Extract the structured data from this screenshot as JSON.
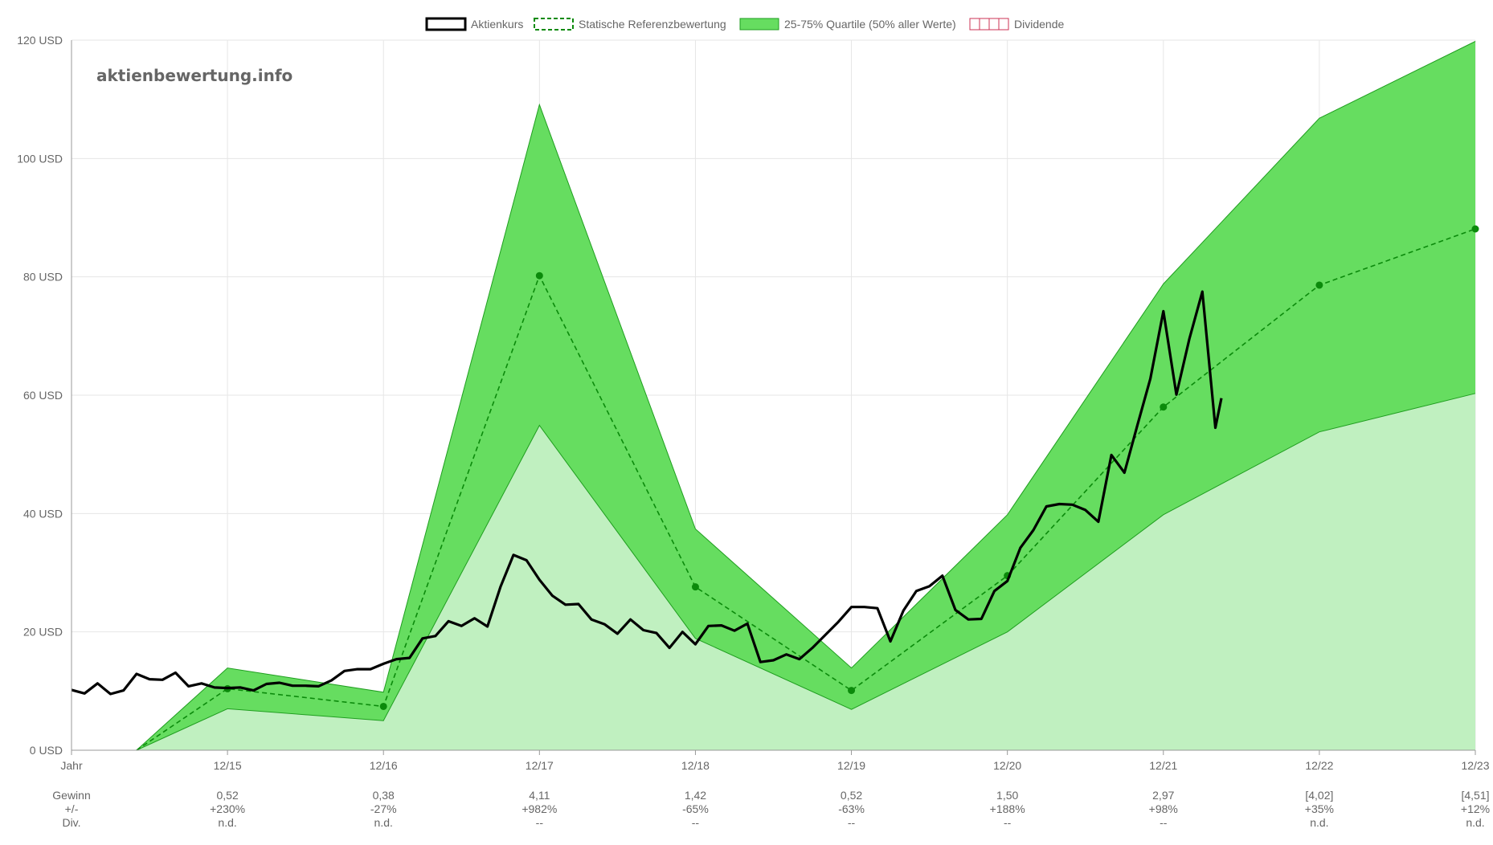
{
  "watermark": "aktienbewertung.info",
  "legend": [
    {
      "label": "Aktienkurs",
      "kind": "price"
    },
    {
      "label": "Statische Referenzbewertung",
      "kind": "reference"
    },
    {
      "label": "25-75% Quartile (50% aller Werte)",
      "kind": "quartile"
    },
    {
      "label": "Dividende",
      "kind": "dividend"
    }
  ],
  "colors": {
    "price": "#000000",
    "reference": "#0b8a0b",
    "band": "#66dd60",
    "band_edge": "#1f9e1f",
    "lower_fill": "#c0f0c0",
    "dividend": "#cc3355",
    "grid": "#e6e6e6",
    "axis": "#999999"
  },
  "chart_data": {
    "type": "line",
    "yunit": "USD",
    "ylim": [
      0,
      120
    ],
    "xlim": [
      "2014-12",
      "2023-12"
    ],
    "yticks": [
      {
        "value": 0,
        "label": "0 USD"
      },
      {
        "value": 20,
        "label": "20 USD"
      },
      {
        "value": 40,
        "label": "40 USD"
      },
      {
        "value": 60,
        "label": "60 USD"
      },
      {
        "value": 80,
        "label": "80 USD"
      },
      {
        "value": 100,
        "label": "100 USD"
      },
      {
        "value": 120,
        "label": "120 USD"
      }
    ],
    "xticks": [
      {
        "value": "2014-12",
        "label": "Jahr"
      },
      {
        "value": "2015-12",
        "label": "12/15"
      },
      {
        "value": "2016-12",
        "label": "12/16"
      },
      {
        "value": "2017-12",
        "label": "12/17"
      },
      {
        "value": "2018-12",
        "label": "12/18"
      },
      {
        "value": "2019-12",
        "label": "12/19"
      },
      {
        "value": "2020-12",
        "label": "12/20"
      },
      {
        "value": "2021-12",
        "label": "12/21"
      },
      {
        "value": "2022-12",
        "label": "12/22"
      },
      {
        "value": "2023-12",
        "label": "12/23"
      }
    ],
    "grid": true,
    "legend_position": "top-center",
    "series": [
      {
        "name": "Aktienkurs",
        "style": "solid-black",
        "points": [
          {
            "x": "2014-12",
            "y": 10.2
          },
          {
            "x": "2015-01",
            "y": 9.6
          },
          {
            "x": "2015-02",
            "y": 11.3
          },
          {
            "x": "2015-03",
            "y": 9.5
          },
          {
            "x": "2015-04",
            "y": 10.1
          },
          {
            "x": "2015-05",
            "y": 12.9
          },
          {
            "x": "2015-06",
            "y": 12.0
          },
          {
            "x": "2015-07",
            "y": 11.9
          },
          {
            "x": "2015-08",
            "y": 13.1
          },
          {
            "x": "2015-09",
            "y": 10.8
          },
          {
            "x": "2015-10",
            "y": 11.3
          },
          {
            "x": "2015-11",
            "y": 10.6
          },
          {
            "x": "2015-12",
            "y": 10.5
          },
          {
            "x": "2016-01",
            "y": 10.6
          },
          {
            "x": "2016-02",
            "y": 10.1
          },
          {
            "x": "2016-03",
            "y": 11.2
          },
          {
            "x": "2016-04",
            "y": 11.4
          },
          {
            "x": "2016-05",
            "y": 10.9
          },
          {
            "x": "2016-06",
            "y": 10.9
          },
          {
            "x": "2016-07",
            "y": 10.8
          },
          {
            "x": "2016-08",
            "y": 11.8
          },
          {
            "x": "2016-09",
            "y": 13.4
          },
          {
            "x": "2016-10",
            "y": 13.7
          },
          {
            "x": "2016-11",
            "y": 13.7
          },
          {
            "x": "2016-12",
            "y": 14.6
          },
          {
            "x": "2017-01",
            "y": 15.4
          },
          {
            "x": "2017-02",
            "y": 15.6
          },
          {
            "x": "2017-03",
            "y": 18.9
          },
          {
            "x": "2017-04",
            "y": 19.3
          },
          {
            "x": "2017-05",
            "y": 21.8
          },
          {
            "x": "2017-06",
            "y": 21.0
          },
          {
            "x": "2017-07",
            "y": 22.3
          },
          {
            "x": "2017-08",
            "y": 20.9
          },
          {
            "x": "2017-09",
            "y": 27.6
          },
          {
            "x": "2017-10",
            "y": 33.0
          },
          {
            "x": "2017-11",
            "y": 32.1
          },
          {
            "x": "2017-12",
            "y": 28.8
          },
          {
            "x": "2018-01",
            "y": 26.1
          },
          {
            "x": "2018-02",
            "y": 24.6
          },
          {
            "x": "2018-03",
            "y": 24.7
          },
          {
            "x": "2018-04",
            "y": 22.1
          },
          {
            "x": "2018-05",
            "y": 21.3
          },
          {
            "x": "2018-06",
            "y": 19.7
          },
          {
            "x": "2018-07",
            "y": 22.1
          },
          {
            "x": "2018-08",
            "y": 20.3
          },
          {
            "x": "2018-09",
            "y": 19.8
          },
          {
            "x": "2018-10",
            "y": 17.3
          },
          {
            "x": "2018-11",
            "y": 20.0
          },
          {
            "x": "2018-12",
            "y": 17.9
          },
          {
            "x": "2019-01",
            "y": 21.0
          },
          {
            "x": "2019-02",
            "y": 21.1
          },
          {
            "x": "2019-03",
            "y": 20.2
          },
          {
            "x": "2019-04",
            "y": 21.4
          },
          {
            "x": "2019-05",
            "y": 14.9
          },
          {
            "x": "2019-06",
            "y": 15.2
          },
          {
            "x": "2019-07",
            "y": 16.2
          },
          {
            "x": "2019-08",
            "y": 15.4
          },
          {
            "x": "2019-09",
            "y": 17.3
          },
          {
            "x": "2019-10",
            "y": 19.5
          },
          {
            "x": "2019-11",
            "y": 21.7
          },
          {
            "x": "2019-12",
            "y": 24.2
          },
          {
            "x": "2020-01",
            "y": 24.2
          },
          {
            "x": "2020-02",
            "y": 24.0
          },
          {
            "x": "2020-03",
            "y": 18.4
          },
          {
            "x": "2020-04",
            "y": 23.6
          },
          {
            "x": "2020-05",
            "y": 26.9
          },
          {
            "x": "2020-06",
            "y": 27.7
          },
          {
            "x": "2020-07",
            "y": 29.5
          },
          {
            "x": "2020-08",
            "y": 23.7
          },
          {
            "x": "2020-09",
            "y": 22.1
          },
          {
            "x": "2020-10",
            "y": 22.2
          },
          {
            "x": "2020-11",
            "y": 26.9
          },
          {
            "x": "2020-12",
            "y": 28.6
          },
          {
            "x": "2021-01",
            "y": 34.2
          },
          {
            "x": "2021-02",
            "y": 37.2
          },
          {
            "x": "2021-03",
            "y": 41.2
          },
          {
            "x": "2021-04",
            "y": 41.6
          },
          {
            "x": "2021-05",
            "y": 41.5
          },
          {
            "x": "2021-06",
            "y": 40.6
          },
          {
            "x": "2021-07",
            "y": 38.6
          },
          {
            "x": "2021-08",
            "y": 49.9
          },
          {
            "x": "2021-09",
            "y": 46.9
          },
          {
            "x": "2021-10",
            "y": 54.9
          },
          {
            "x": "2021-11",
            "y": 62.8
          },
          {
            "x": "2021-12",
            "y": 74.2
          },
          {
            "x": "2022-01",
            "y": 60.1
          },
          {
            "x": "2022-02",
            "y": 69.5
          },
          {
            "x": "2022-03",
            "y": 77.5
          },
          {
            "x": "2022-04",
            "y": 54.5
          },
          {
            "x": "2022-04-15",
            "y": 59.5
          }
        ]
      },
      {
        "name": "Statische Referenzbewertung",
        "style": "dashed-green-with-dots",
        "points": [
          {
            "x": "2015-05",
            "y": 0,
            "marker": false
          },
          {
            "x": "2015-12",
            "y": 10.4
          },
          {
            "x": "2016-12",
            "y": 7.4
          },
          {
            "x": "2017-12",
            "y": 80.2
          },
          {
            "x": "2018-12",
            "y": 27.6
          },
          {
            "x": "2019-12",
            "y": 10.1
          },
          {
            "x": "2020-12",
            "y": 29.5
          },
          {
            "x": "2021-12",
            "y": 58.0
          },
          {
            "x": "2022-12",
            "y": 78.6
          },
          {
            "x": "2023-12",
            "y": 88.1
          }
        ]
      },
      {
        "name": "25-75% Quartile (50% aller Werte)",
        "style": "band",
        "x": [
          "2015-05",
          "2015-12",
          "2016-12",
          "2017-12",
          "2018-12",
          "2019-12",
          "2020-12",
          "2021-12",
          "2022-12",
          "2023-12"
        ],
        "lower": [
          0,
          7.0,
          5.0,
          54.9,
          18.9,
          6.9,
          20.0,
          39.8,
          53.8,
          60.3
        ],
        "upper": [
          0,
          13.9,
          9.8,
          109.1,
          37.4,
          13.9,
          39.8,
          78.8,
          106.8,
          119.8
        ]
      }
    ]
  },
  "table": {
    "row_labels": [
      "Gewinn",
      "+/-",
      "Div."
    ],
    "columns": [
      {
        "year": "12/15",
        "gewinn": "0,52",
        "change": "+230%",
        "div": "n.d."
      },
      {
        "year": "12/16",
        "gewinn": "0,38",
        "change": "-27%",
        "div": "n.d."
      },
      {
        "year": "12/17",
        "gewinn": "4,11",
        "change": "+982%",
        "div": "--"
      },
      {
        "year": "12/18",
        "gewinn": "1,42",
        "change": "-65%",
        "div": "--"
      },
      {
        "year": "12/19",
        "gewinn": "0,52",
        "change": "-63%",
        "div": "--"
      },
      {
        "year": "12/20",
        "gewinn": "1,50",
        "change": "+188%",
        "div": "--"
      },
      {
        "year": "12/21",
        "gewinn": "2,97",
        "change": "+98%",
        "div": "--"
      },
      {
        "year": "12/22",
        "gewinn": "[4,02]",
        "change": "+35%",
        "div": "n.d."
      },
      {
        "year": "12/23",
        "gewinn": "[4,51]",
        "change": "+12%",
        "div": "n.d."
      }
    ]
  }
}
